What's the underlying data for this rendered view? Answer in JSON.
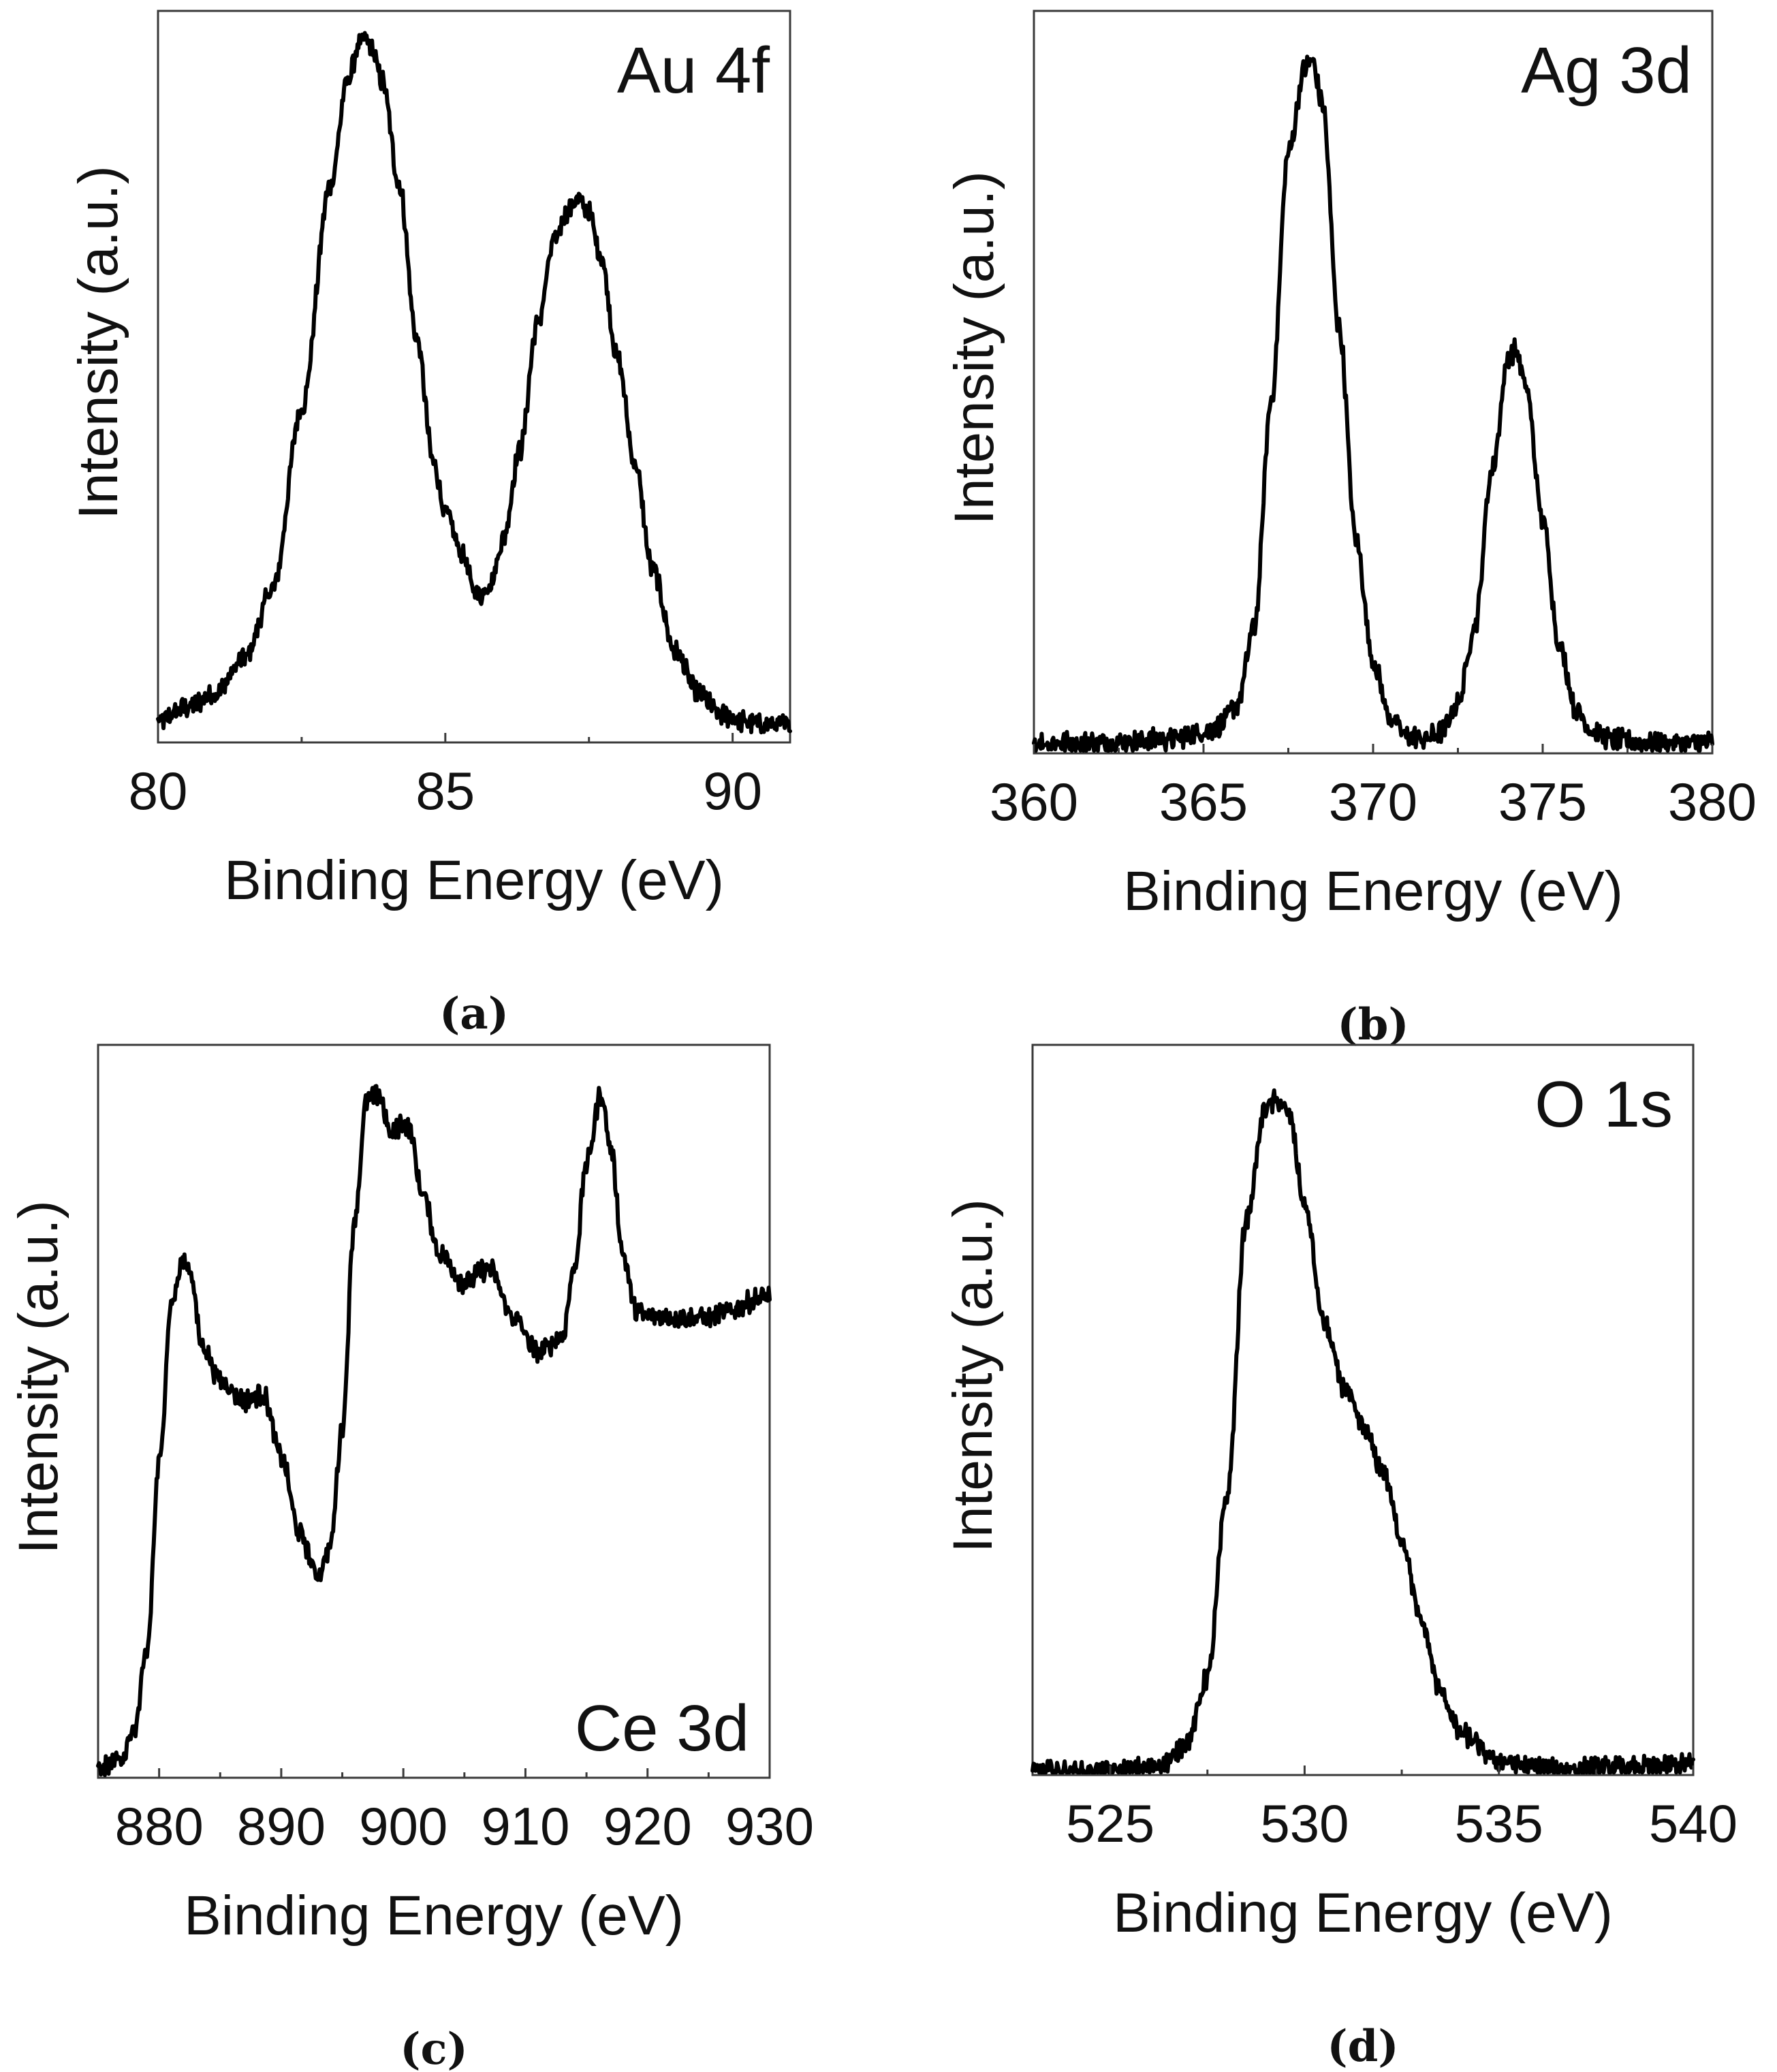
{
  "chart_data": [
    {
      "type": "line",
      "panel": "a",
      "caption": "(a)",
      "title": "Au 4f",
      "xlabel": "Binding Energy (eV)",
      "ylabel": "Intensity (a.u.)",
      "xlim": [
        80,
        91
      ],
      "ylim": [
        0,
        105
      ],
      "xticks": [
        80,
        85,
        90
      ],
      "xtick_labels": [
        "80",
        "85",
        "90"
      ],
      "x": [
        80,
        80.5,
        81,
        81.5,
        82,
        82.5,
        83,
        83.3,
        83.5,
        83.6,
        83.7,
        83.9,
        84.2,
        84.5,
        84.8,
        85.0,
        85.3,
        85.5,
        85.6,
        85.8,
        86.0,
        86.3,
        86.6,
        86.9,
        87.1,
        87.3,
        87.5,
        87.7,
        88.0,
        88.3,
        88.6,
        89.0,
        89.4,
        89.8,
        90.2,
        90.6,
        91
      ],
      "series": [
        {
          "name": "Au 4f",
          "values": [
            3,
            5,
            7,
            12,
            22,
            48,
            80,
            95,
            100,
            101,
            100,
            95,
            80,
            58,
            40,
            33,
            27,
            22,
            21,
            23,
            29,
            42,
            60,
            72,
            76,
            78,
            76,
            70,
            55,
            40,
            25,
            13,
            7,
            4,
            3,
            2.5,
            2.5
          ]
        }
      ]
    },
    {
      "type": "line",
      "panel": "b",
      "caption": "(b)",
      "title": "Ag 3d",
      "xlabel": "Binding Energy (eV)",
      "ylabel": "Intensity (a.u.)",
      "xlim": [
        360,
        380
      ],
      "ylim": [
        0,
        105
      ],
      "xticks": [
        360,
        365,
        370,
        375,
        380
      ],
      "xtick_labels": [
        "360",
        "365",
        "370",
        "375",
        "380"
      ],
      "x": [
        360,
        362,
        364,
        365,
        365.5,
        366,
        366.5,
        367,
        367.5,
        368,
        368.2,
        368.5,
        369,
        369.5,
        370,
        370.5,
        371,
        371.5,
        372,
        372.5,
        373,
        373.5,
        374,
        374.2,
        374.5,
        375,
        375.5,
        376,
        376.5,
        377,
        378,
        379,
        380
      ],
      "series": [
        {
          "name": "Ag 3d",
          "values": [
            1.5,
            1.5,
            2,
            3,
            4,
            7,
            18,
            50,
            85,
            97,
            98,
            92,
            60,
            30,
            13,
            5,
            2.5,
            2,
            3,
            7,
            18,
            40,
            56,
            57,
            52,
            33,
            15,
            6,
            3,
            2,
            1.5,
            1.5,
            1.5
          ]
        }
      ]
    },
    {
      "type": "line",
      "panel": "c",
      "caption": "(c)",
      "title": "Ce 3d",
      "xlabel": "Binding Energy (eV)",
      "ylabel": "Intensity (a.u.)",
      "xlim": [
        875,
        930
      ],
      "ylim": [
        0,
        105
      ],
      "xticks": [
        880,
        890,
        900,
        910,
        920,
        930
      ],
      "xtick_labels": [
        "880",
        "890",
        "900",
        "910",
        "920",
        "930"
      ],
      "x": [
        875,
        877,
        878,
        879,
        880,
        881,
        882,
        882.5,
        883.5,
        885,
        887,
        888.5,
        890,
        891.5,
        893,
        894,
        895,
        896,
        897,
        898,
        899,
        900,
        900.5,
        901.5,
        903,
        905,
        907,
        909,
        911,
        913,
        914,
        915,
        916.2,
        917,
        918,
        919,
        920,
        925,
        930
      ],
      "series": [
        {
          "name": "Ce 3d",
          "values": [
            1,
            3,
            7,
            18,
            45,
            68,
            74,
            73,
            62,
            57,
            54,
            55,
            46,
            35,
            29,
            33,
            50,
            80,
            97,
            98,
            92,
            94,
            93,
            84,
            75,
            71,
            73,
            66,
            61,
            63,
            73,
            88,
            98,
            90,
            75,
            67,
            66,
            66,
            69
          ]
        }
      ]
    },
    {
      "type": "line",
      "panel": "d",
      "caption": "(d)",
      "title": "O 1s",
      "xlabel": "Binding Energy (eV)",
      "ylabel": "Intensity (a.u.)",
      "xlim": [
        523,
        540
      ],
      "ylim": [
        0,
        105
      ],
      "xticks": [
        525,
        530,
        535,
        540
      ],
      "xtick_labels": [
        "525",
        "530",
        "535",
        "540"
      ],
      "x": [
        523,
        524,
        525,
        526,
        526.5,
        527,
        527.5,
        528,
        528.5,
        529,
        529.3,
        529.6,
        530,
        530.5,
        531,
        531.5,
        532,
        532.5,
        533,
        533.5,
        534,
        535,
        536,
        538,
        540
      ],
      "series": [
        {
          "name": "O 1s",
          "values": [
            0.5,
            0.5,
            0.5,
            1,
            2,
            5,
            14,
            40,
            80,
            96,
            97,
            95,
            82,
            65,
            56,
            50,
            44,
            34,
            22,
            12,
            6,
            2,
            1,
            1,
            1.5
          ]
        }
      ]
    }
  ]
}
